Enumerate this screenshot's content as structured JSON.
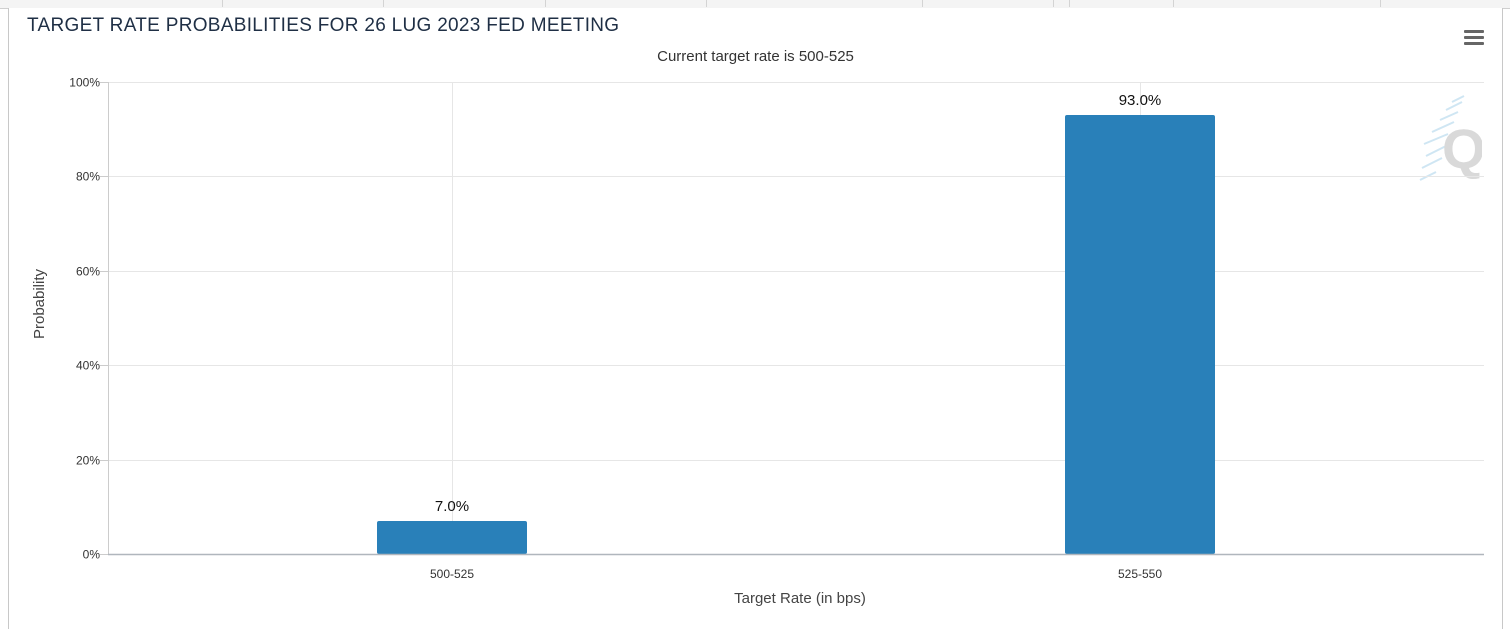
{
  "chart_data": {
    "type": "bar",
    "title": "TARGET RATE PROBABILITIES FOR 26 LUG 2023 FED MEETING",
    "subtitle": "Current target rate is 500-525",
    "xlabel": "Target Rate (in bps)",
    "ylabel": "Probability",
    "categories": [
      "500-525",
      "525-550"
    ],
    "values": [
      7.0,
      93.0
    ],
    "data_labels": [
      "7.0%",
      "93.0%"
    ],
    "ylim": [
      0,
      100
    ],
    "yticks": [
      0,
      20,
      40,
      60,
      80,
      100
    ],
    "ytick_labels": [
      "0%",
      "20%",
      "40%",
      "60%",
      "80%",
      "100%"
    ],
    "grid": true,
    "legend": "none",
    "bar_color": "#2980b9"
  },
  "icons": {
    "menu": "hamburger-menu-icon",
    "logo": "q-logo-watermark"
  }
}
